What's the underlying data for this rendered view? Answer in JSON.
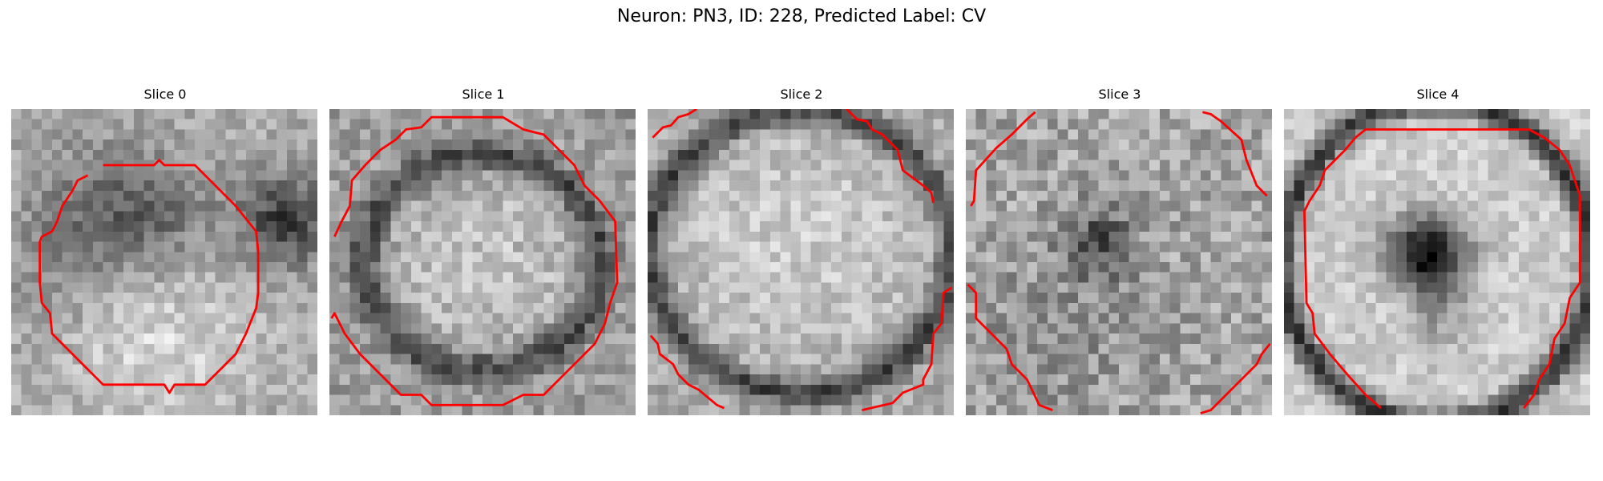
{
  "figure": {
    "title": "Neuron: PN3, ID: 228, Predicted Label: CV",
    "panels": [
      {
        "title": "Slice 0",
        "image": "grayscale microscopy patch: dark irregular blob in center-left, dark structure at right edge, light gray below",
        "contour_color": "#ff0000"
      },
      {
        "title": "Slice 1",
        "image": "grayscale microscopy patch: bright oval with dark ring boundary",
        "contour_color": "#ff0000"
      },
      {
        "title": "Slice 2",
        "image": "grayscale microscopy patch: large bright disc with dark ring near the edges",
        "contour_color": "#ff0000"
      },
      {
        "title": "Slice 3",
        "image": "grayscale microscopy patch: mottled texture with dark spot near center",
        "contour_color": "#ff0000"
      },
      {
        "title": "Slice 4",
        "image": "grayscale microscopy patch: bright disc with a dark blob at center and dark ring edge",
        "contour_color": "#ff0000"
      }
    ]
  }
}
